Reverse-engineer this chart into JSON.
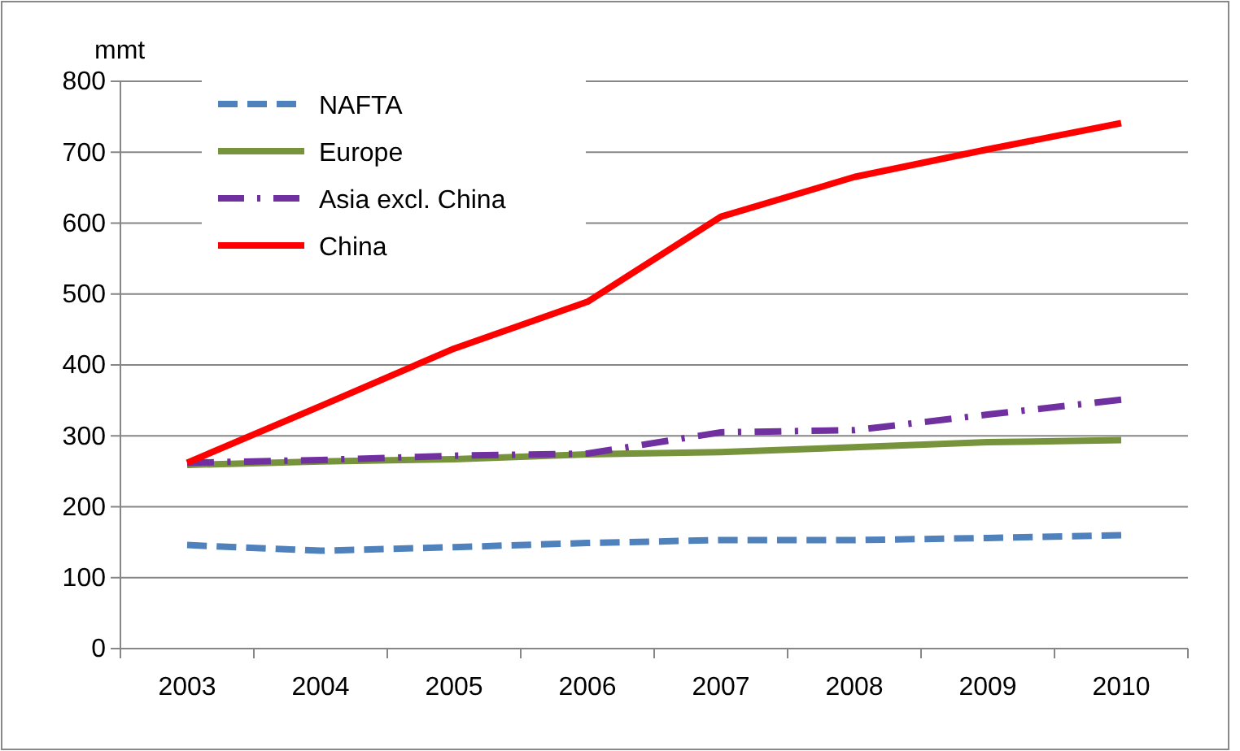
{
  "chart_data": {
    "type": "line",
    "ylabel": "mmt",
    "categories": [
      "2003",
      "2004",
      "2005",
      "2006",
      "2007",
      "2008",
      "2009",
      "2010"
    ],
    "series": [
      {
        "name": "NAFTA",
        "color": "#4f81bd",
        "line_style": "dashed",
        "values": [
          146,
          138,
          143,
          149,
          153,
          153,
          156,
          160
        ]
      },
      {
        "name": "Europe",
        "color": "#77933c",
        "line_style": "solid",
        "values": [
          259,
          264,
          267,
          274,
          277,
          284,
          291,
          294
        ]
      },
      {
        "name": "Asia excl. China",
        "color": "#7030a0",
        "line_style": "dashdot",
        "values": [
          262,
          266,
          272,
          275,
          305,
          308,
          330,
          351
        ]
      },
      {
        "name": "China",
        "color": "#ff0000",
        "line_style": "solid",
        "values": [
          262,
          342,
          423,
          489,
          609,
          665,
          704,
          741
        ]
      }
    ],
    "ylim": [
      0,
      800
    ],
    "yticks": [
      0,
      100,
      200,
      300,
      400,
      500,
      600,
      700,
      800
    ],
    "grid": "y",
    "legend": "top left",
    "marker": "none"
  }
}
